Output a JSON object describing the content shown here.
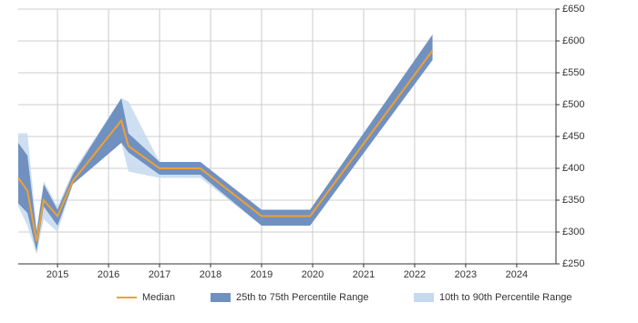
{
  "chart_data": {
    "type": "line",
    "x": [
      2014.23,
      2014.41,
      2014.59,
      2014.73,
      2015.0,
      2015.3,
      2016.25,
      2016.39,
      2017.0,
      2017.8,
      2019.0,
      2019.95,
      2022.35
    ],
    "series": [
      {
        "name": "Median",
        "color": "#f0a030",
        "values": [
          385,
          365,
          285,
          350,
          325,
          380,
          475,
          435,
          400,
          400,
          325,
          325,
          585
        ]
      }
    ],
    "bands": [
      {
        "name": "25th to 75th Percentile Range",
        "color": "#7090c0",
        "upper": [
          440,
          420,
          300,
          375,
          335,
          390,
          510,
          455,
          410,
          410,
          335,
          335,
          610
        ],
        "lower": [
          345,
          330,
          270,
          340,
          310,
          375,
          440,
          425,
          390,
          390,
          310,
          310,
          570
        ]
      },
      {
        "name": "10th to 90th Percentile Range",
        "color": "#c6d9ee",
        "upper": [
          455,
          455,
          305,
          380,
          340,
          395,
          510,
          505,
          410,
          410,
          330,
          330,
          610
        ],
        "lower": [
          340,
          310,
          265,
          320,
          300,
          375,
          440,
          395,
          385,
          385,
          310,
          310,
          570
        ]
      }
    ],
    "xlim": [
      2014.23,
      2024.77
    ],
    "xticks": [
      2015,
      2016,
      2017,
      2018,
      2019,
      2020,
      2021,
      2022,
      2023,
      2024
    ],
    "ylim": [
      250,
      650
    ],
    "yticks": [
      {
        "value": 250,
        "label": "£250"
      },
      {
        "value": 300,
        "label": "£300"
      },
      {
        "value": 350,
        "label": "£350"
      },
      {
        "value": 400,
        "label": "£400"
      },
      {
        "value": 450,
        "label": "£450"
      },
      {
        "value": 500,
        "label": "£500"
      },
      {
        "value": 550,
        "label": "£550"
      },
      {
        "value": 600,
        "label": "£600"
      },
      {
        "value": 650,
        "label": "£650"
      }
    ],
    "grid": true,
    "legend": "bottom"
  }
}
